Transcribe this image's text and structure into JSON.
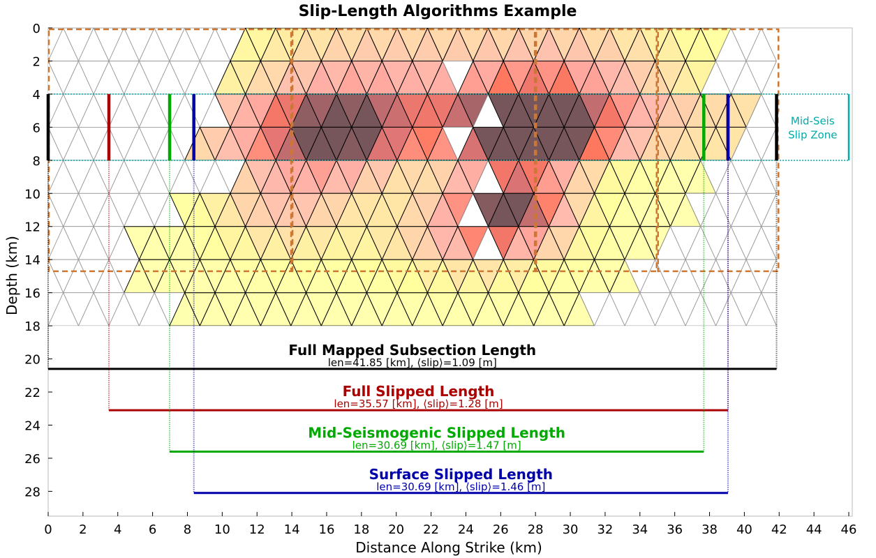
{
  "chart_data": {
    "type": "heatmap",
    "title": "Slip-Length Algorithms Example",
    "xlabel": "Distance Along Strike (km)",
    "ylabel": "Depth (km)",
    "xlim": [
      0,
      46.2
    ],
    "ylim": [
      29.5,
      0
    ],
    "x_ticks": [
      0,
      2,
      4,
      6,
      8,
      10,
      12,
      14,
      16,
      18,
      20,
      22,
      24,
      26,
      28,
      30,
      32,
      34,
      36,
      38,
      40,
      42,
      44,
      46
    ],
    "y_ticks": [
      0,
      2,
      4,
      6,
      8,
      10,
      12,
      14,
      16,
      18,
      20,
      22,
      24,
      26,
      28
    ],
    "grid": false,
    "mesh": {
      "x_range": [
        0,
        41.85
      ],
      "depth_range": [
        0,
        18
      ],
      "rows": 9,
      "columns": 24
    },
    "mid_seismogenic_zone": {
      "depth_top": 4,
      "depth_bottom": 8,
      "color": "#00aaaa",
      "label_line1": "Mid-Seis",
      "label_line2": "Slip Zone"
    },
    "subsection_boundaries": [
      0,
      14,
      28,
      35,
      42
    ],
    "subsection_depth": 14.7,
    "subsection_color": "#cc7733",
    "lengths": [
      {
        "name": "Full Mapped Subsection Length",
        "summary": "len=41.85 [km], ⟨slip⟩=1.09 [m]",
        "x_start": 0,
        "x_end": 41.85,
        "depth": 20.6,
        "color": "#000000"
      },
      {
        "name": "Full Slipped Length",
        "summary": "len=35.57 [km], ⟨slip⟩=1.28 [m]",
        "x_start": 3.49,
        "x_end": 39.06,
        "depth": 23.1,
        "color": "#aa0000"
      },
      {
        "name": "Mid-Seismogenic Slipped Length",
        "summary": "len=30.69 [km], ⟨slip⟩=1.47 [m]",
        "x_start": 6.98,
        "x_end": 37.67,
        "depth": 25.6,
        "color": "#00aa00"
      },
      {
        "name": "Surface Slipped Length",
        "summary": "len=30.69 [km], ⟨slip⟩=1.46 [m]",
        "x_start": 8.37,
        "x_end": 39.06,
        "depth": 28.1,
        "color": "#0000aa"
      }
    ],
    "colors": {
      "unslipped_line": "#999999",
      "slipped_line": "#000000"
    }
  }
}
